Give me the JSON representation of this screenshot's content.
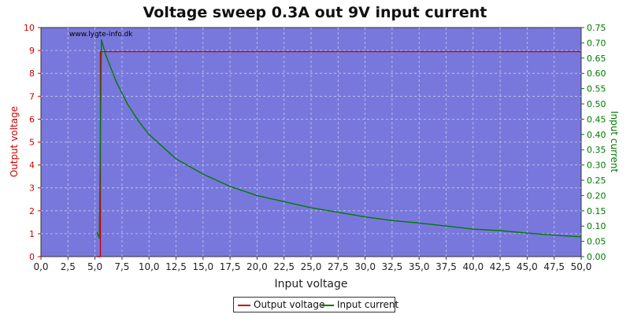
{
  "chart_data": {
    "type": "line",
    "title": "Voltage sweep 0.3A out 9V input current",
    "watermark": "www.lygte-info.dk",
    "xlabel": "Input voltage",
    "ylabel_left": "Output voltage",
    "ylabel_right": "Input current",
    "xlim": [
      0,
      50
    ],
    "ylim_left": [
      0,
      10
    ],
    "ylim_right": [
      0,
      0.75
    ],
    "x_ticks": [
      "0,0",
      "2,5",
      "5,0",
      "7,5",
      "10,0",
      "12,5",
      "15,0",
      "17,5",
      "20,0",
      "22,5",
      "25,0",
      "27,5",
      "30,0",
      "32,5",
      "35,0",
      "37,5",
      "40,0",
      "42,5",
      "45,0",
      "47,5",
      "50,0"
    ],
    "y_left_ticks": [
      "0",
      "1",
      "2",
      "3",
      "4",
      "5",
      "6",
      "7",
      "8",
      "9",
      "10"
    ],
    "y_right_ticks": [
      "0.00",
      "0.05",
      "0.10",
      "0.15",
      "0.20",
      "0.25",
      "0.30",
      "0.35",
      "0.40",
      "0.45",
      "0.50",
      "0.55",
      "0.60",
      "0.65",
      "0.70",
      "0.75"
    ],
    "grid": true,
    "legend_position": "bottom-center",
    "colors": {
      "plot_bg": "#7878dc",
      "output_voltage": "#cc0000",
      "input_current": "#007a00",
      "grid": "#c8c8f0"
    },
    "series": [
      {
        "name": "Output voltage",
        "axis": "left",
        "x": [
          5.2,
          5.5,
          5.5,
          5.7,
          10,
          20,
          30,
          40,
          50
        ],
        "y": [
          0,
          0,
          8.95,
          8.95,
          8.95,
          8.95,
          8.95,
          8.95,
          8.95
        ]
      },
      {
        "name": "Input current",
        "axis": "right",
        "x": [
          5.2,
          5.4,
          5.6,
          6,
          7,
          8,
          9,
          10,
          12.5,
          15,
          17.5,
          20,
          22.5,
          25,
          27.5,
          30,
          32.5,
          35,
          37.5,
          40,
          42.5,
          45,
          47.5,
          50
        ],
        "y": [
          0.08,
          0.06,
          0.71,
          0.66,
          0.57,
          0.5,
          0.445,
          0.4,
          0.32,
          0.27,
          0.23,
          0.2,
          0.18,
          0.16,
          0.145,
          0.13,
          0.118,
          0.11,
          0.1,
          0.09,
          0.085,
          0.077,
          0.07,
          0.065
        ]
      }
    ]
  },
  "legend": {
    "output_label": "Output voltage",
    "input_label": "Input current"
  }
}
